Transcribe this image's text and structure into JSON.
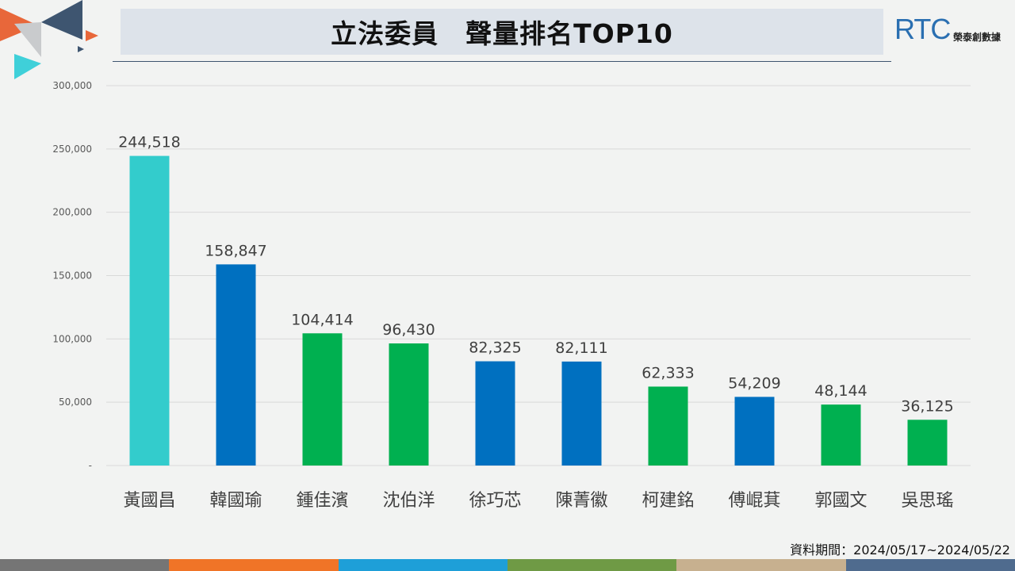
{
  "header": {
    "title": "立法委員　聲量排名TOP10",
    "logo_letters": "RTC",
    "logo_subtitle": "榮泰創數據"
  },
  "footer": {
    "data_period": "資料期間：2024/05/17~2024/05/22",
    "stripe_colors": [
      "#757575",
      "#f07427",
      "#1e9fd8",
      "#6f9a45",
      "#c7b08f",
      "#4f6b8e"
    ]
  },
  "chart_data": {
    "type": "bar",
    "title": "立法委員　聲量排名TOP10",
    "xlabel": "",
    "ylabel": "",
    "categories": [
      "黃國昌",
      "韓國瑜",
      "鍾佳濱",
      "沈伯洋",
      "徐巧芯",
      "陳菁徽",
      "柯建銘",
      "傅崐萁",
      "郭國文",
      "吳思瑤"
    ],
    "values": [
      244518,
      158847,
      104414,
      96430,
      82325,
      82111,
      62333,
      54209,
      48144,
      36125
    ],
    "value_labels": [
      "244,518",
      "158,847",
      "104,414",
      "96,430",
      "82,325",
      "82,111",
      "62,333",
      "54,209",
      "48,144",
      "36,125"
    ],
    "bar_colors": [
      "#33cccc",
      "#0070c0",
      "#00b050",
      "#00b050",
      "#0070c0",
      "#0070c0",
      "#00b050",
      "#0070c0",
      "#00b050",
      "#00b050"
    ],
    "ylim": [
      0,
      300000
    ],
    "yticks": [
      0,
      50000,
      100000,
      150000,
      200000,
      250000,
      300000
    ],
    "ytick_labels": [
      "-",
      "50,000",
      "100,000",
      "150,000",
      "200,000",
      "250,000",
      "300,000"
    ],
    "grid": true,
    "legend": "none"
  }
}
